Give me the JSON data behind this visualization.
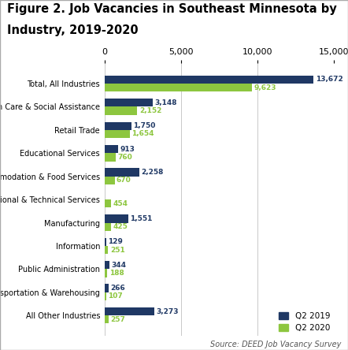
{
  "title_line1": "Figure 2. Job Vacancies in Southeast Minnesota by",
  "title_line2": "Industry, 2019-2020",
  "categories": [
    "Total, All Industries",
    "Health Care & Social Assistance",
    "Retail Trade",
    "Educational Services",
    "Accommodation & Food Services",
    "Professional & Technical Services",
    "Manufacturing",
    "Information",
    "Public Administration",
    "Transportation & Warehousing",
    "All Other Industries"
  ],
  "q2_2019": [
    13672,
    3148,
    1750,
    913,
    2258,
    0,
    1551,
    129,
    344,
    266,
    3273
  ],
  "q2_2020": [
    9623,
    2152,
    1654,
    760,
    670,
    454,
    425,
    251,
    188,
    107,
    257
  ],
  "color_2019": "#1F3864",
  "color_2020": "#8DC63F",
  "xlim": [
    0,
    15000
  ],
  "xticks": [
    0,
    5000,
    10000,
    15000
  ],
  "bar_height": 0.35,
  "source_text": "Source: DEED Job Vacancy Survey",
  "legend_q2_2019": "Q2 2019",
  "legend_q2_2020": "Q2 2020"
}
